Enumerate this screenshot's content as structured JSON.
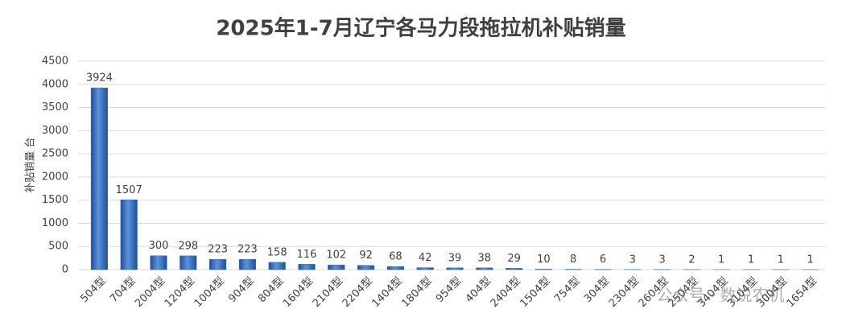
{
  "chart_data": {
    "type": "bar",
    "title": "2025年1-7月辽宁各马力段拖拉机补贴销量",
    "y_label": "补贴销量 台",
    "watermark": "公众号 · 数说农机",
    "categories": [
      "504型",
      "704型",
      "2004型",
      "1204型",
      "1004型",
      "904型",
      "804型",
      "1604型",
      "2104型",
      "2204型",
      "1404型",
      "1804型",
      "954型",
      "404型",
      "2404型",
      "1504型",
      "754型",
      "304型",
      "2304型",
      "2604型",
      "2504型",
      "3404型",
      "3104型",
      "3004型",
      "1654型"
    ],
    "values": [
      3924,
      1507,
      300,
      298,
      223,
      223,
      158,
      116,
      102,
      92,
      68,
      42,
      39,
      38,
      29,
      10,
      8,
      6,
      3,
      3,
      2,
      1,
      1,
      1,
      1
    ],
    "color": "#2e6cc0",
    "ylim": [
      0,
      4500
    ],
    "yticks": [
      0,
      500,
      1000,
      1500,
      2000,
      2500,
      3000,
      3500,
      4000,
      4500
    ],
    "grid": true
  }
}
